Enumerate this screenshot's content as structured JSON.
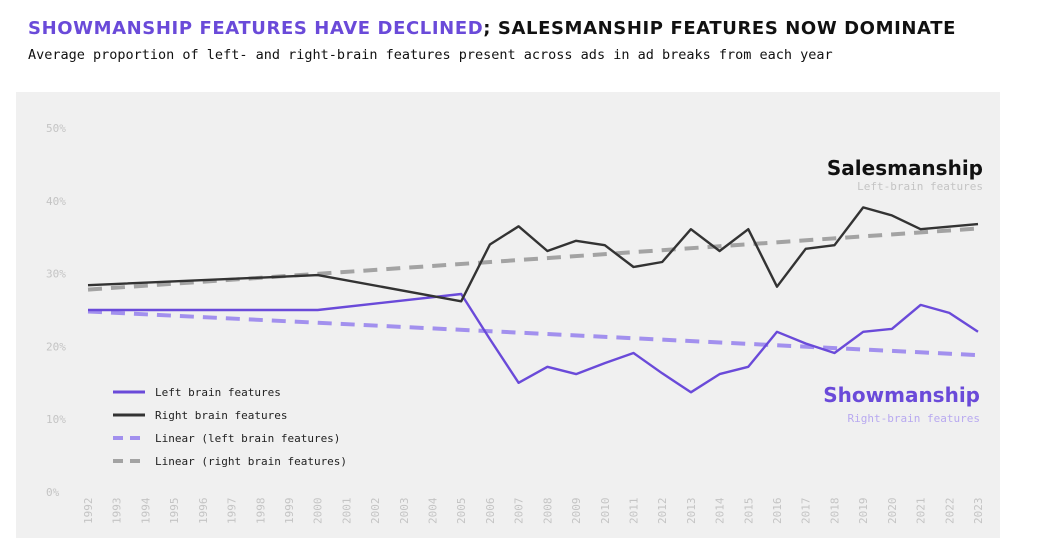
{
  "header": {
    "title_accent": "SHOWMANSHIP FEATURES HAVE DECLINED",
    "title_rest": "; SALESMANSHIP FEATURES NOW DOMINATE",
    "subtitle": "Average proportion of left- and right-brain features present across ads in ad breaks from each year"
  },
  "annotations": {
    "salesmanship": {
      "title": "Salesmanship",
      "subtitle": "Left-brain features",
      "color": "#111111",
      "sub_color": "#c4c4c4"
    },
    "showmanship": {
      "title": "Showmanship",
      "subtitle": "Right-brain features",
      "color": "#6a4ad9",
      "sub_color": "#b8a9f0"
    }
  },
  "chart_data": {
    "type": "line",
    "x": [
      "1992",
      "1993",
      "1994",
      "1995",
      "1996",
      "1997",
      "1998",
      "1999",
      "2000",
      "2001",
      "2002",
      "2003",
      "2004",
      "2005",
      "2006",
      "2007",
      "2008",
      "2009",
      "2010",
      "2011",
      "2012",
      "2013",
      "2014",
      "2015",
      "2016",
      "2017",
      "2018",
      "2019",
      "2020",
      "2021",
      "2022",
      "2023"
    ],
    "y_ticks": [
      "0%",
      "10%",
      "20%",
      "30%",
      "40%",
      "50%"
    ],
    "ylim": [
      0,
      50
    ],
    "grid": false,
    "legend_position": "bottom-left",
    "series": [
      {
        "name": "Left brain features",
        "color": "#6a4ad9",
        "style": "solid",
        "values": [
          25,
          null,
          null,
          null,
          null,
          null,
          null,
          null,
          25,
          null,
          null,
          null,
          null,
          27.2,
          21,
          15,
          17.2,
          16.2,
          17.7,
          19.1,
          16.3,
          13.7,
          16.2,
          17.2,
          22,
          20.4,
          19.1,
          22,
          22.4,
          25.7,
          24.6,
          22
        ]
      },
      {
        "name": "Right brain features",
        "color": "#333333",
        "style": "solid",
        "values": [
          28.4,
          null,
          null,
          null,
          null,
          null,
          null,
          null,
          29.8,
          null,
          null,
          null,
          null,
          26.2,
          34,
          36.5,
          33.1,
          34.5,
          33.9,
          30.9,
          31.6,
          36.1,
          33.1,
          36.1,
          28.2,
          33.4,
          33.9,
          39.1,
          38,
          36.1,
          null,
          36.8
        ]
      },
      {
        "name": "Linear (left brain features)",
        "color": "#a290ee",
        "style": "dashed",
        "values": [
          24.8,
          null,
          null,
          null,
          null,
          null,
          null,
          null,
          null,
          null,
          null,
          null,
          null,
          null,
          null,
          null,
          null,
          null,
          null,
          null,
          null,
          null,
          null,
          null,
          null,
          null,
          null,
          null,
          null,
          null,
          null,
          18.8
        ]
      },
      {
        "name": "Linear (right brain features)",
        "color": "#a3a3a3",
        "style": "dashed",
        "values": [
          27.8,
          null,
          null,
          null,
          null,
          null,
          null,
          null,
          null,
          null,
          null,
          null,
          null,
          null,
          null,
          null,
          null,
          null,
          null,
          null,
          null,
          null,
          null,
          null,
          null,
          null,
          null,
          null,
          null,
          null,
          null,
          36.2
        ]
      }
    ]
  }
}
